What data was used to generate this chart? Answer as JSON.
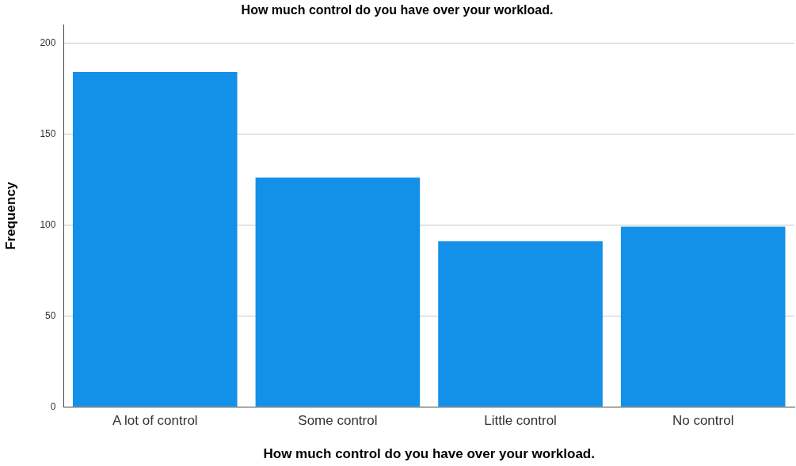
{
  "chart_data": {
    "type": "bar",
    "title": "How much control do you have over your workload.",
    "xlabel": "How much control do you have over your workload.",
    "ylabel": "Frequency",
    "categories": [
      "A lot of control",
      "Some control",
      "Little control",
      "No control"
    ],
    "values": [
      184,
      126,
      91,
      99
    ],
    "color": "#1390e8",
    "ylim": [
      0,
      210
    ],
    "yticks": [
      0,
      50,
      100,
      150,
      200
    ],
    "grid": "y"
  }
}
